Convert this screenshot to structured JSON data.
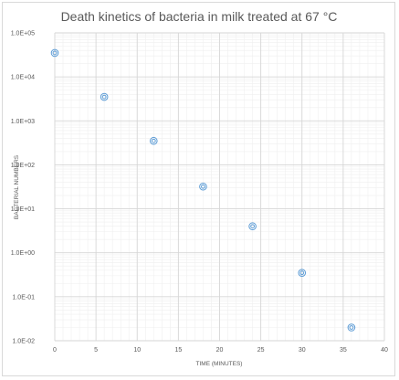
{
  "chart_data": {
    "type": "scatter",
    "title": "Death kinetics of bacteria in milk treated at 67 °C",
    "xlabel": "TIME (MINUTES)",
    "ylabel": "BACTERIAL NUMBERS",
    "xlim": [
      0,
      40
    ],
    "ylim": [
      0.01,
      100000
    ],
    "y_scale": "log",
    "x_ticks": [
      0,
      5,
      10,
      15,
      20,
      25,
      30,
      35,
      40
    ],
    "x_tick_labels": [
      "0",
      "5",
      "10",
      "15",
      "20",
      "25",
      "30",
      "35",
      "40"
    ],
    "y_ticks": [
      100000,
      10000,
      1000,
      100,
      10,
      1,
      0.1,
      0.01
    ],
    "y_tick_labels": [
      "1.0E+05",
      "1.0E+04",
      "1.0E+03",
      "1.0E+02",
      "1.0E+01",
      "1.0E+00",
      "1.0E-01",
      "1.0E-02"
    ],
    "grid": true,
    "marker": "double-circle",
    "marker_color": "#5b9bd5",
    "series": [
      {
        "x": [
          0,
          6,
          12,
          18,
          24,
          30,
          36
        ],
        "y": [
          35000,
          3500,
          350,
          32,
          4,
          0.35,
          0.02
        ]
      }
    ]
  }
}
